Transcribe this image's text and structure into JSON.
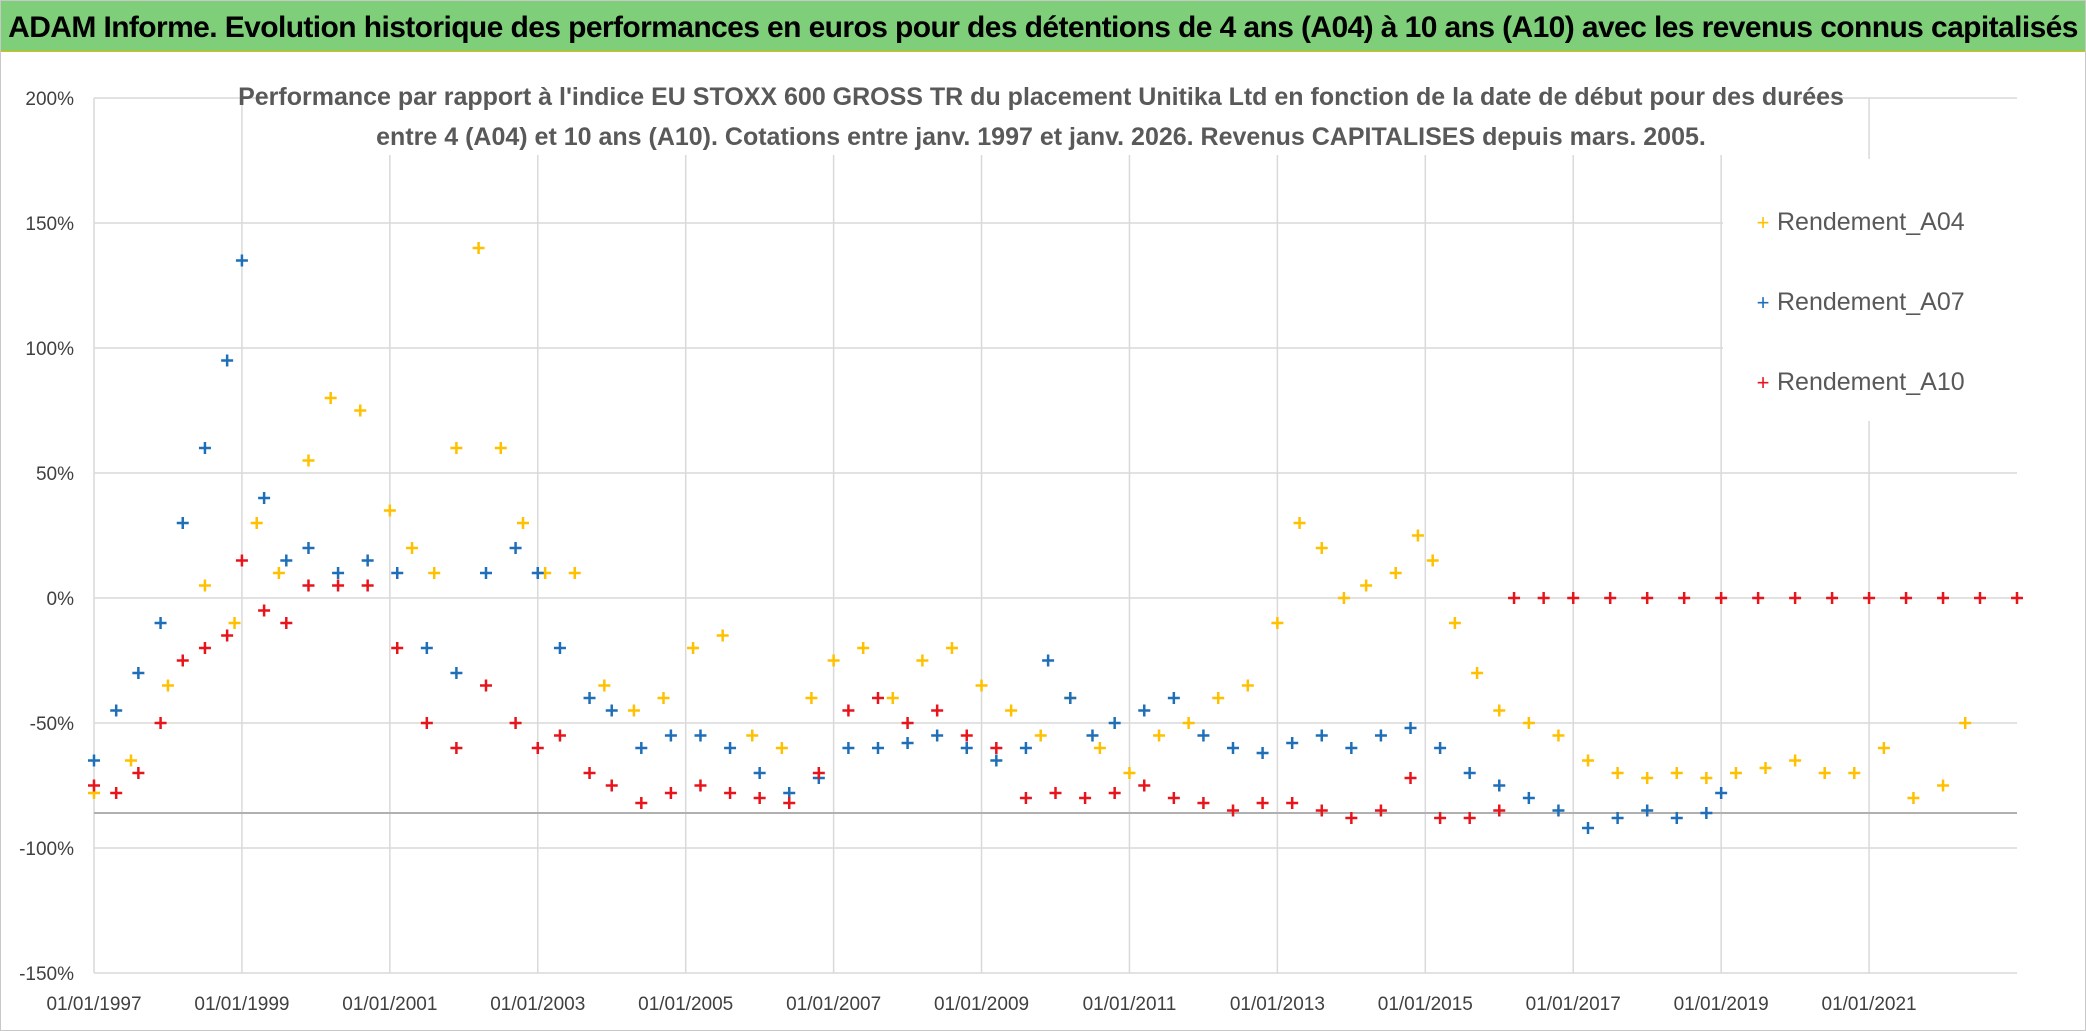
{
  "banner": {
    "title": "ADAM Informe. Evolution historique des performances en euros pour des détentions de 4 ans (A04) à 10 ans (A10) avec les revenus connus capitalisés"
  },
  "chart_data": {
    "type": "scatter",
    "title_line1": "Performance par rapport à l'indice EU STOXX 600 GROSS TR  du placement Unitika Ltd en fonction de la date de début pour des durées",
    "title_line2": "entre 4 (A04) et 10 ans (A10). Cotations entre janv. 1997 et janv. 2026. Revenus CAPITALISES depuis mars. 2005.",
    "xlabel": "",
    "ylabel": "",
    "x_range": [
      1997.0,
      2023.0
    ],
    "ylim": [
      -150,
      200
    ],
    "x_tick_labels": [
      "01/01/1997",
      "01/01/1999",
      "01/01/2001",
      "01/01/2003",
      "01/01/2005",
      "01/01/2007",
      "01/01/2009",
      "01/01/2011",
      "01/01/2013",
      "01/01/2015",
      "01/01/2017",
      "01/01/2019",
      "01/01/2021"
    ],
    "x_tick_years": [
      1997,
      1999,
      2001,
      2003,
      2005,
      2007,
      2009,
      2011,
      2013,
      2015,
      2017,
      2019,
      2021
    ],
    "y_ticks": [
      200,
      150,
      100,
      50,
      0,
      -50,
      -100,
      -150
    ],
    "y_tick_labels": [
      "200%",
      "150%",
      "100%",
      "50%",
      "0%",
      "-50%",
      "-100%",
      "-150%"
    ],
    "reference_line": -86,
    "grid": true,
    "legend_position": "top-right",
    "marker": "+",
    "series": [
      {
        "name": "Rendement_A04",
        "color": "#ffc000",
        "x": [
          1997.0,
          1997.5,
          1998.0,
          1998.5,
          1998.9,
          1999.2,
          1999.5,
          1999.9,
          2000.2,
          2000.6,
          2001.0,
          2001.3,
          2001.6,
          2001.9,
          2002.2,
          2002.5,
          2002.8,
          2003.1,
          2003.5,
          2003.9,
          2004.3,
          2004.7,
          2005.1,
          2005.5,
          2005.9,
          2006.3,
          2006.7,
          2007.0,
          2007.4,
          2007.8,
          2008.2,
          2008.6,
          2009.0,
          2009.4,
          2009.8,
          2010.2,
          2010.6,
          2011.0,
          2011.4,
          2011.8,
          2012.2,
          2012.6,
          2013.0,
          2013.3,
          2013.6,
          2013.9,
          2014.2,
          2014.6,
          2014.9,
          2015.1,
          2015.4,
          2015.7,
          2016.0,
          2016.4,
          2016.8,
          2017.2,
          2017.6,
          2018.0,
          2018.4,
          2018.8,
          2019.2,
          2019.6,
          2020.0,
          2020.4,
          2020.8,
          2021.2,
          2021.6,
          2022.0,
          2022.3
        ],
        "y": [
          -78,
          -65,
          -35,
          5,
          -10,
          30,
          10,
          55,
          80,
          75,
          35,
          20,
          10,
          60,
          140,
          60,
          30,
          10,
          10,
          -35,
          -45,
          -40,
          -20,
          -15,
          -55,
          -60,
          -40,
          -25,
          -20,
          -40,
          -25,
          -20,
          -35,
          -45,
          -55,
          -40,
          -60,
          -70,
          -55,
          -50,
          -40,
          -35,
          -10,
          30,
          20,
          0,
          5,
          10,
          25,
          15,
          -10,
          -30,
          -45,
          -50,
          -55,
          -65,
          -70,
          -72,
          -70,
          -72,
          -70,
          -68,
          -65,
          -70,
          -70,
          -60,
          -80,
          -75,
          -50
        ]
      },
      {
        "name": "Rendement_A07",
        "color": "#1f6fb8",
        "x": [
          1997.0,
          1997.3,
          1997.6,
          1997.9,
          1998.2,
          1998.5,
          1998.8,
          1999.0,
          1999.3,
          1999.6,
          1999.9,
          2000.3,
          2000.7,
          2001.1,
          2001.5,
          2001.9,
          2002.3,
          2002.7,
          2003.0,
          2003.3,
          2003.7,
          2004.0,
          2004.4,
          2004.8,
          2005.2,
          2005.6,
          2006.0,
          2006.4,
          2006.8,
          2007.2,
          2007.6,
          2008.0,
          2008.4,
          2008.8,
          2009.2,
          2009.6,
          2009.9,
          2010.2,
          2010.5,
          2010.8,
          2011.2,
          2011.6,
          2012.0,
          2012.4,
          2012.8,
          2013.2,
          2013.6,
          2014.0,
          2014.4,
          2014.8,
          2015.2,
          2015.6,
          2016.0,
          2016.4,
          2016.8,
          2017.2,
          2017.6,
          2018.0,
          2018.4,
          2018.8,
          2019.0
        ],
        "y": [
          -65,
          -45,
          -30,
          -10,
          30,
          60,
          95,
          135,
          40,
          15,
          20,
          10,
          15,
          10,
          -20,
          -30,
          10,
          20,
          10,
          -20,
          -40,
          -45,
          -60,
          -55,
          -55,
          -60,
          -70,
          -78,
          -72,
          -60,
          -60,
          -58,
          -55,
          -60,
          -65,
          -60,
          -25,
          -40,
          -55,
          -50,
          -45,
          -40,
          -55,
          -60,
          -62,
          -58,
          -55,
          -60,
          -55,
          -52,
          -60,
          -70,
          -75,
          -80,
          -85,
          -92,
          -88,
          -85,
          -88,
          -86,
          -78
        ]
      },
      {
        "name": "Rendement_A10",
        "color": "#e8141b",
        "x": [
          1997.0,
          1997.3,
          1997.6,
          1997.9,
          1998.2,
          1998.5,
          1998.8,
          1999.0,
          1999.3,
          1999.6,
          1999.9,
          2000.3,
          2000.7,
          2001.1,
          2001.5,
          2001.9,
          2002.3,
          2002.7,
          2003.0,
          2003.3,
          2003.7,
          2004.0,
          2004.4,
          2004.8,
          2005.2,
          2005.6,
          2006.0,
          2006.4,
          2006.8,
          2007.2,
          2007.6,
          2008.0,
          2008.4,
          2008.8,
          2009.2,
          2009.6,
          2010.0,
          2010.4,
          2010.8,
          2011.2,
          2011.6,
          2012.0,
          2012.4,
          2012.8,
          2013.2,
          2013.6,
          2014.0,
          2014.4,
          2014.8,
          2015.2,
          2015.6,
          2016.0,
          2016.2,
          2016.6,
          2017.0,
          2017.5,
          2018.0,
          2018.5,
          2019.0,
          2019.5,
          2020.0,
          2020.5,
          2021.0,
          2021.5,
          2022.0,
          2022.5,
          2023.0
        ],
        "y": [
          -75,
          -78,
          -70,
          -50,
          -25,
          -20,
          -15,
          15,
          -5,
          -10,
          5,
          5,
          5,
          -20,
          -50,
          -60,
          -35,
          -50,
          -60,
          -55,
          -70,
          -75,
          -82,
          -78,
          -75,
          -78,
          -80,
          -82,
          -70,
          -45,
          -40,
          -50,
          -45,
          -55,
          -60,
          -80,
          -78,
          -80,
          -78,
          -75,
          -80,
          -82,
          -85,
          -82,
          -82,
          -85,
          -88,
          -85,
          -72,
          -88,
          -88,
          -85,
          0,
          0,
          0,
          0,
          0,
          0,
          0,
          0,
          0,
          0,
          0,
          0,
          0,
          0,
          0
        ]
      }
    ]
  }
}
